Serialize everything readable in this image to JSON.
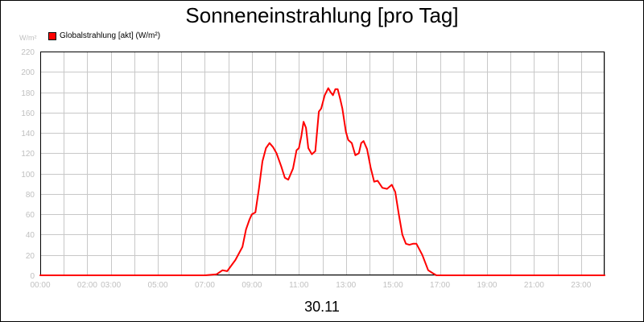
{
  "chart_data": {
    "type": "line",
    "title": "Sonneneinstrahlung [pro Tag]",
    "unit_label": "W/m²",
    "date_label": "30.11",
    "ylim": [
      0,
      220
    ],
    "y_ticks": [
      0,
      20,
      40,
      60,
      80,
      100,
      120,
      140,
      160,
      180,
      200,
      220
    ],
    "y_tick_labels": [
      "0",
      "20",
      "40",
      "60",
      "80",
      "100",
      "120",
      "140",
      "160",
      "180",
      "200",
      "220"
    ],
    "xlim": [
      0,
      24
    ],
    "x_ticks": [
      0,
      2,
      3,
      5,
      7,
      9,
      11,
      13,
      15,
      17,
      19,
      21,
      23
    ],
    "x_tick_labels": [
      "00:00",
      "02:00",
      "03:00",
      "05:00",
      "07:00",
      "09:00",
      "11:00",
      "13:00",
      "15:00",
      "17:00",
      "19:00",
      "21:00",
      "23:00"
    ],
    "x_grid_hours": [
      0,
      1,
      2,
      3,
      4,
      5,
      6,
      7,
      8,
      9,
      10,
      11,
      12,
      13,
      14,
      15,
      16,
      17,
      18,
      19,
      20,
      21,
      22,
      23,
      24
    ],
    "grid": true,
    "legend_position": "top-left",
    "series": [
      {
        "name": "Globalstrahlung [akt] (W/m²)",
        "color": "#ff0000",
        "x": [
          0,
          7.0,
          7.5,
          7.75,
          7.95,
          8.3,
          8.6,
          8.75,
          8.9,
          9.0,
          9.15,
          9.3,
          9.45,
          9.6,
          9.75,
          9.9,
          10.05,
          10.25,
          10.4,
          10.55,
          10.75,
          10.9,
          11.0,
          11.1,
          11.2,
          11.3,
          11.4,
          11.55,
          11.7,
          11.85,
          11.95,
          12.1,
          12.25,
          12.35,
          12.45,
          12.55,
          12.65,
          12.75,
          12.85,
          13.0,
          13.1,
          13.25,
          13.4,
          13.55,
          13.65,
          13.75,
          13.9,
          14.05,
          14.2,
          14.35,
          14.55,
          14.75,
          14.95,
          15.1,
          15.25,
          15.4,
          15.55,
          15.7,
          15.85,
          16.0,
          16.25,
          16.5,
          16.7,
          16.85,
          17.0,
          24.0
        ],
        "y": [
          0,
          0,
          1,
          5,
          4,
          15,
          28,
          45,
          55,
          60,
          62,
          85,
          112,
          125,
          130,
          126,
          120,
          107,
          96,
          94,
          105,
          123,
          125,
          136,
          151,
          145,
          125,
          119,
          122,
          161,
          164,
          177,
          184,
          180,
          177,
          183,
          183,
          174,
          164,
          141,
          133,
          130,
          118,
          120,
          130,
          132,
          124,
          106,
          92,
          93,
          86,
          85,
          89,
          82,
          60,
          40,
          31,
          30,
          31,
          31,
          20,
          5,
          2,
          0,
          0,
          0
        ]
      }
    ]
  }
}
